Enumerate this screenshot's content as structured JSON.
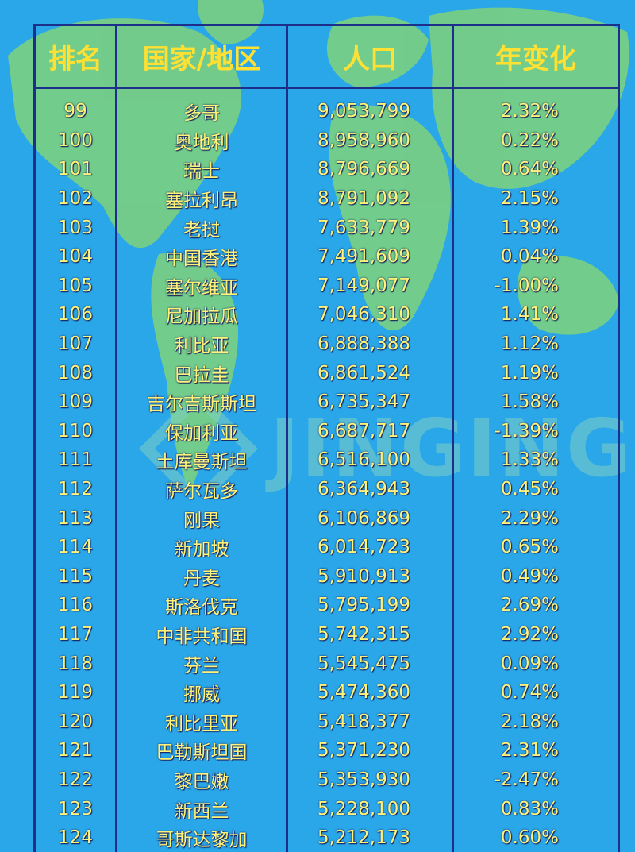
{
  "headers": [
    "排名",
    "国家/地区",
    "人口",
    "年变化"
  ],
  "watermark": "JINGING",
  "rows": [
    {
      "rank": "99",
      "country": "多哥",
      "population": "9,053,799",
      "change": "2.32%"
    },
    {
      "rank": "100",
      "country": "奥地利",
      "population": "8,958,960",
      "change": "0.22%"
    },
    {
      "rank": "101",
      "country": "瑞士",
      "population": "8,796,669",
      "change": "0.64%"
    },
    {
      "rank": "102",
      "country": "塞拉利昂",
      "population": "8,791,092",
      "change": "2.15%"
    },
    {
      "rank": "103",
      "country": "老挝",
      "population": "7,633,779",
      "change": "1.39%"
    },
    {
      "rank": "104",
      "country": "中国香港",
      "population": "7,491,609",
      "change": "0.04%"
    },
    {
      "rank": "105",
      "country": "塞尔维亚",
      "population": "7,149,077",
      "change": "-1.00%"
    },
    {
      "rank": "106",
      "country": "尼加拉瓜",
      "population": "7,046,310",
      "change": "1.41%"
    },
    {
      "rank": "107",
      "country": "利比亚",
      "population": "6,888,388",
      "change": "1.12%"
    },
    {
      "rank": "108",
      "country": "巴拉圭",
      "population": "6,861,524",
      "change": "1.19%"
    },
    {
      "rank": "109",
      "country": "吉尔吉斯斯坦",
      "population": "6,735,347",
      "change": "1.58%"
    },
    {
      "rank": "110",
      "country": "保加利亚",
      "population": "6,687,717",
      "change": "-1.39%"
    },
    {
      "rank": "111",
      "country": "土库曼斯坦",
      "population": "6,516,100",
      "change": "1.33%"
    },
    {
      "rank": "112",
      "country": "萨尔瓦多",
      "population": "6,364,943",
      "change": "0.45%"
    },
    {
      "rank": "113",
      "country": "刚果",
      "population": "6,106,869",
      "change": "2.29%"
    },
    {
      "rank": "114",
      "country": "新加坡",
      "population": "6,014,723",
      "change": "0.65%"
    },
    {
      "rank": "115",
      "country": "丹麦",
      "population": "5,910,913",
      "change": "0.49%"
    },
    {
      "rank": "116",
      "country": "斯洛伐克",
      "population": "5,795,199",
      "change": "2.69%"
    },
    {
      "rank": "117",
      "country": "中非共和国",
      "population": "5,742,315",
      "change": "2.92%"
    },
    {
      "rank": "118",
      "country": "芬兰",
      "population": "5,545,475",
      "change": "0.09%"
    },
    {
      "rank": "119",
      "country": "挪威",
      "population": "5,474,360",
      "change": "0.74%"
    },
    {
      "rank": "120",
      "country": "利比里亚",
      "population": "5,418,377",
      "change": "2.18%"
    },
    {
      "rank": "121",
      "country": "巴勒斯坦国",
      "population": "5,371,230",
      "change": "2.31%"
    },
    {
      "rank": "122",
      "country": "黎巴嫩",
      "population": "5,353,930",
      "change": "-2.47%"
    },
    {
      "rank": "123",
      "country": "新西兰",
      "population": "5,228,100",
      "change": "0.83%"
    },
    {
      "rank": "124",
      "country": "哥斯达黎加",
      "population": "5,212,173",
      "change": "0.60%"
    }
  ]
}
